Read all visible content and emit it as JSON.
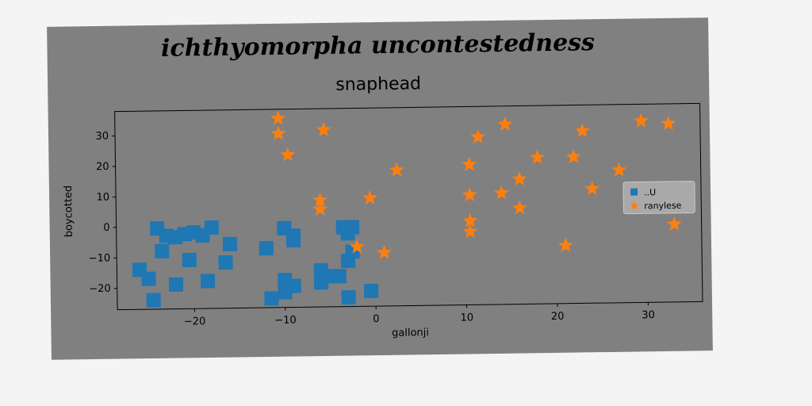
{
  "figure": {
    "supertitle": "ichthyomorpha uncontestedness"
  },
  "chart_data": {
    "type": "scatter",
    "title": "snaphead",
    "xlabel": "gallonji",
    "ylabel": "boycotted",
    "xlim": [
      -28.5,
      36
    ],
    "ylim": [
      -27,
      38
    ],
    "xticks": [
      -20,
      -10,
      0,
      10,
      20,
      30
    ],
    "yticks": [
      -20,
      -10,
      0,
      10,
      20,
      30
    ],
    "grid": false,
    "legend_position": "center-right",
    "series": [
      {
        "name": "..U",
        "marker": "square",
        "color": "#1f77b4",
        "points": [
          [
            -24,
            -0.5
          ],
          [
            -23,
            -3
          ],
          [
            -22,
            -3.5
          ],
          [
            -21,
            -2.5
          ],
          [
            -20,
            -2
          ],
          [
            -19,
            -3
          ],
          [
            -18,
            -0.5
          ],
          [
            -16,
            -6
          ],
          [
            -23.5,
            -8
          ],
          [
            -20.5,
            -11
          ],
          [
            -16.5,
            -12
          ],
          [
            -26,
            -14
          ],
          [
            -25,
            -17
          ],
          [
            -22,
            -19
          ],
          [
            -18.5,
            -18
          ],
          [
            -24.5,
            -24
          ],
          [
            -10,
            -1
          ],
          [
            -9,
            -3.5
          ],
          [
            -9,
            -5
          ],
          [
            -12,
            -7.5
          ],
          [
            -3.5,
            -1
          ],
          [
            -2.5,
            -1
          ],
          [
            -3,
            -3
          ],
          [
            -2.5,
            -9
          ],
          [
            -3,
            -12
          ],
          [
            -6,
            -15
          ],
          [
            -5,
            -17
          ],
          [
            -4,
            -17
          ],
          [
            -6,
            -19
          ],
          [
            -10,
            -18
          ],
          [
            -9,
            -20
          ],
          [
            -10,
            -22
          ],
          [
            -11.5,
            -24
          ],
          [
            -0.5,
            -22
          ],
          [
            -3,
            -24
          ]
        ]
      },
      {
        "name": "ranylese",
        "marker": "star",
        "color": "#ff7f0e",
        "points": [
          [
            -10.5,
            35
          ],
          [
            -10.5,
            30
          ],
          [
            -5.5,
            31
          ],
          [
            -9.5,
            23
          ],
          [
            -6,
            8
          ],
          [
            -6,
            5
          ],
          [
            -0.5,
            8.5
          ],
          [
            2.5,
            17.5
          ],
          [
            -2,
            -7.5
          ],
          [
            1,
            -9.5
          ],
          [
            11.5,
            28
          ],
          [
            14.5,
            32
          ],
          [
            10.5,
            19
          ],
          [
            18,
            21
          ],
          [
            22,
            21
          ],
          [
            23,
            29.5
          ],
          [
            27,
            16.5
          ],
          [
            24,
            10.5
          ],
          [
            16,
            14
          ],
          [
            14,
            9.5
          ],
          [
            10.5,
            9
          ],
          [
            16,
            4.5
          ],
          [
            10.5,
            0.5
          ],
          [
            10.5,
            -3
          ],
          [
            21,
            -8
          ],
          [
            29.5,
            32.5
          ],
          [
            32.5,
            31.5
          ],
          [
            33,
            -1.5
          ]
        ]
      }
    ]
  }
}
